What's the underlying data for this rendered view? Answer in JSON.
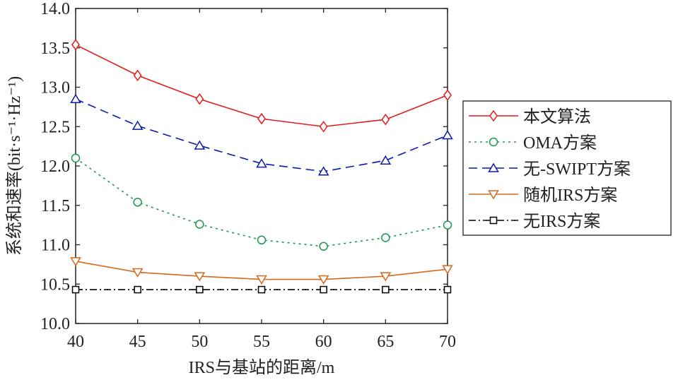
{
  "chart_data": {
    "type": "line",
    "title": "",
    "xlabel": "IRS与基站的距离/m",
    "ylabel": "系统和速率(bit·s⁻¹·Hz⁻¹)",
    "xlim": [
      40,
      70
    ],
    "ylim": [
      10,
      14
    ],
    "x": [
      40,
      45,
      50,
      55,
      60,
      65,
      70
    ],
    "xticks": [
      "40",
      "45",
      "50",
      "55",
      "60",
      "65",
      "70"
    ],
    "yticks": [
      "10.0",
      "10.5",
      "11.0",
      "11.5",
      "12.0",
      "12.5",
      "13.0",
      "13.5",
      "14.0"
    ],
    "grid": false,
    "legend_position": "right",
    "series": [
      {
        "name": "本文算法",
        "color": "#e31a1c",
        "dash": "",
        "marker": "diamond",
        "values": [
          13.54,
          13.15,
          12.85,
          12.6,
          12.5,
          12.59,
          12.9
        ]
      },
      {
        "name": "OMA方案",
        "color": "#1a9850",
        "dash": "3,5",
        "marker": "circle",
        "values": [
          12.1,
          11.54,
          11.26,
          11.06,
          10.98,
          11.09,
          11.25
        ]
      },
      {
        "name": "无-SWIPT方案",
        "color": "#0a1aa8",
        "dash": "12,7",
        "marker": "triangle-up",
        "values": [
          12.85,
          12.51,
          12.26,
          12.03,
          11.93,
          12.07,
          12.39
        ]
      },
      {
        "name": "随机IRS方案",
        "color": "#d2691e",
        "dash": "",
        "marker": "triangle-down",
        "values": [
          10.79,
          10.65,
          10.6,
          10.56,
          10.56,
          10.6,
          10.69
        ]
      },
      {
        "name": "无IRS方案",
        "color": "#000000",
        "dash": "10,4,2,4",
        "marker": "square",
        "values": [
          10.43,
          10.43,
          10.43,
          10.43,
          10.43,
          10.43,
          10.43
        ]
      }
    ]
  }
}
